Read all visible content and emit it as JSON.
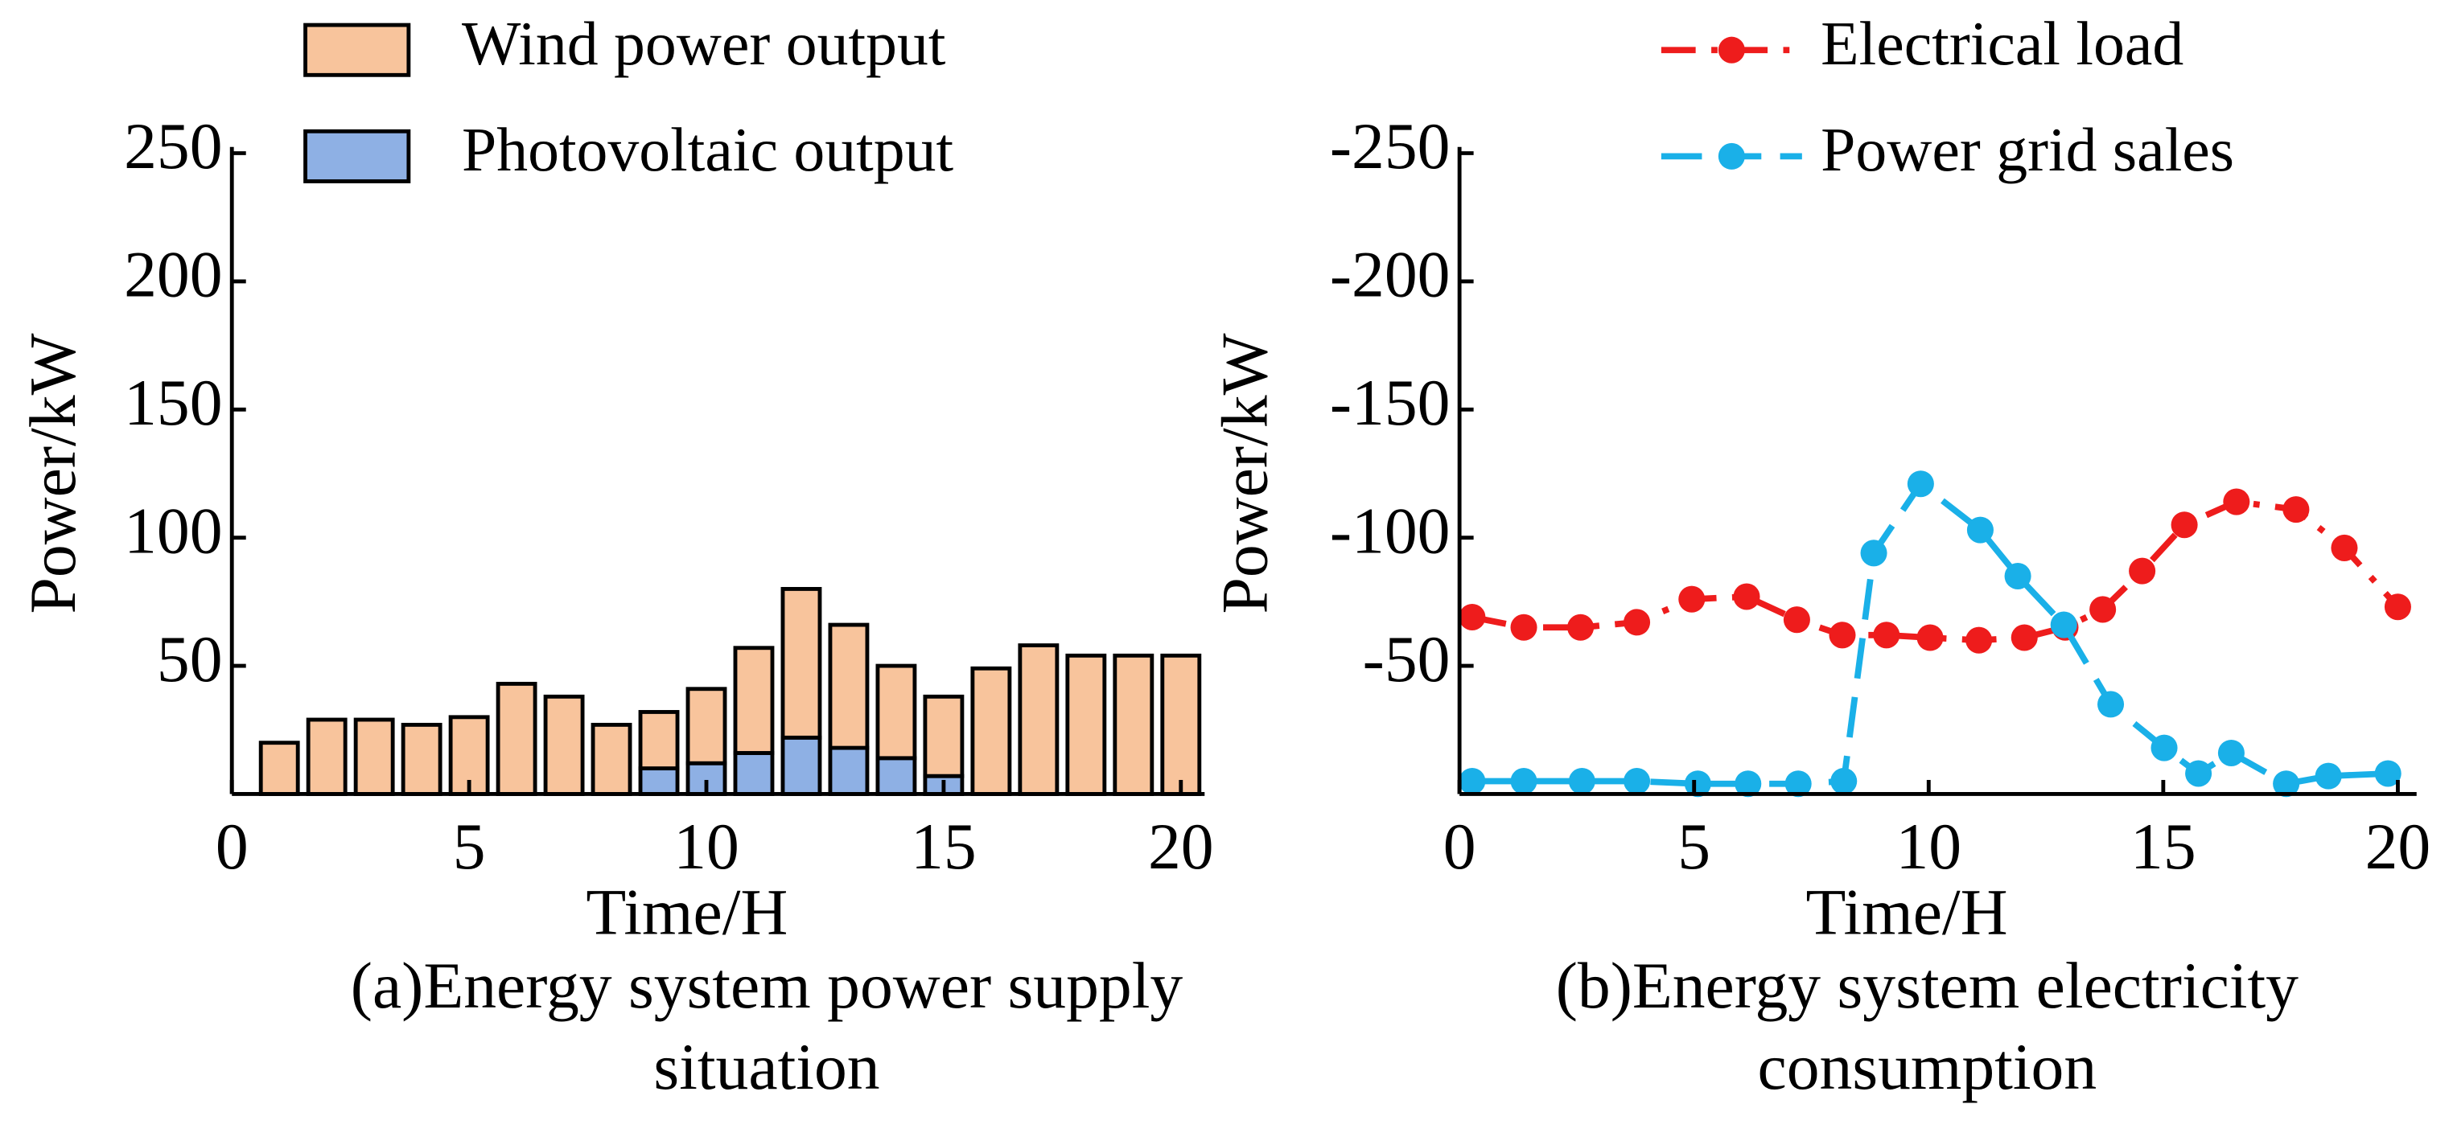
{
  "chart_data": [
    {
      "type": "bar",
      "stacked": true,
      "x": [
        1,
        2,
        3,
        4,
        5,
        6,
        7,
        8,
        9,
        10,
        11,
        12,
        13,
        14,
        15,
        16,
        17,
        18,
        19,
        20
      ],
      "series": [
        {
          "name": "Wind power output",
          "color": "#f8c49c",
          "values": [
            20,
            29,
            29,
            27,
            30,
            43,
            38,
            27,
            22,
            29,
            41,
            58,
            48,
            36,
            31,
            49,
            58,
            54,
            54,
            54
          ]
        },
        {
          "name": "Photovoltaic output",
          "color": "#8eb0e4",
          "values": [
            0,
            0,
            0,
            0,
            0,
            0,
            0,
            0,
            10,
            12,
            16,
            22,
            18,
            14,
            7,
            0,
            0,
            0,
            0,
            0
          ]
        }
      ],
      "xlabel": "Time/H",
      "ylabel": "Power/kW",
      "caption": [
        "(a)Energy system power supply",
        "situation"
      ],
      "xlim": [
        0,
        20.5
      ],
      "xticks": [
        0,
        5,
        10,
        15,
        20
      ],
      "ylim": [
        0,
        250
      ],
      "yticks": [
        50,
        100,
        150,
        200,
        250
      ]
    },
    {
      "type": "line",
      "series": [
        {
          "name": "Electrical load",
          "color": "#ee1c1c",
          "dash": "dashdot",
          "x": [
            0.27,
            1.37,
            2.58,
            3.78,
            4.95,
            6.12,
            7.19,
            8.16,
            9.1,
            10.03,
            11.07,
            12.04,
            12.91,
            13.71,
            14.55,
            15.45,
            16.56,
            17.83,
            18.86,
            20
          ],
          "values": [
            -69,
            -65,
            -65,
            -67,
            -76,
            -77,
            -68,
            -62,
            -62,
            -61,
            -60,
            -61,
            -65,
            -72,
            -87,
            -105,
            -114,
            -111,
            -96,
            -73
          ]
        },
        {
          "name": "Power grid sales",
          "color": "#1ab0e8",
          "dash": "dashed",
          "x": [
            0.27,
            1.37,
            2.61,
            3.78,
            5.08,
            6.15,
            7.22,
            8.19,
            8.83,
            9.83,
            11.1,
            11.9,
            12.88,
            13.88,
            15.02,
            15.75,
            16.45,
            17.62,
            18.52,
            19.79
          ],
          "values": [
            -5,
            -5,
            -5,
            -5,
            -4,
            -4,
            -4,
            -5,
            -94,
            -121,
            -103,
            -85,
            -66,
            -35,
            -18,
            -8,
            -16,
            -4,
            -7,
            -8
          ]
        }
      ],
      "xlabel": "Time/H",
      "ylabel": "Power/kW",
      "caption": [
        "(b)Energy system electricity",
        "consumption"
      ],
      "xlim": [
        0,
        20.4
      ],
      "xticks": [
        0,
        5,
        10,
        15,
        20
      ],
      "ylim": [
        0,
        -250
      ],
      "yticks": [
        -50,
        -100,
        -150,
        -200,
        -250
      ]
    }
  ]
}
